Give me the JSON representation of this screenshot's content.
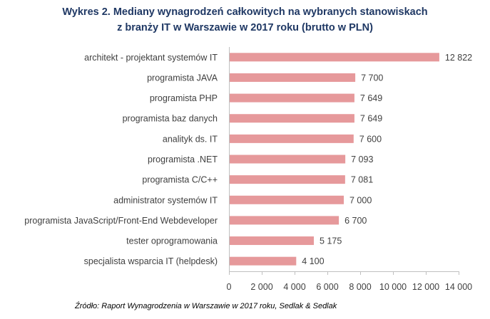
{
  "title_line1": "Wykres 2. Mediany wynagrodzeń całkowitych na wybranych stanowiskach",
  "title_line2": "z branży IT w Warszawie w 2017 roku (brutto w PLN)",
  "source": "Źródło: Raport Wynagrodzenia w Warszawie w 2017 roku, Sedlak & Sedlak",
  "chart_data": {
    "type": "bar",
    "orientation": "horizontal",
    "categories": [
      "architekt - projektant systemów IT",
      "programista JAVA",
      "programista PHP",
      "programista baz danych",
      "analityk ds. IT",
      "programista .NET",
      "programista C/C++",
      "administrator systemów IT",
      "programista JavaScript/Front-End Webdeveloper",
      "tester oprogramowania",
      "specjalista wsparcia IT (helpdesk)"
    ],
    "values": [
      12822,
      7700,
      7649,
      7649,
      7600,
      7093,
      7081,
      7000,
      6700,
      5175,
      4100
    ],
    "value_labels": [
      "12 822",
      "7 700",
      "7 649",
      "7 649",
      "7 600",
      "7 093",
      "7 081",
      "7 000",
      "6 700",
      "5 175",
      "4 100"
    ],
    "xlim": [
      0,
      14000
    ],
    "xticks": [
      0,
      2000,
      4000,
      6000,
      8000,
      10000,
      12000,
      14000
    ],
    "xtick_labels": [
      "0",
      "2 000",
      "4 000",
      "6 000",
      "8 000",
      "10 000",
      "12 000",
      "14 000"
    ],
    "grid": false,
    "bar_color": "#e6999b",
    "axis_color": "#bfbfbf"
  }
}
